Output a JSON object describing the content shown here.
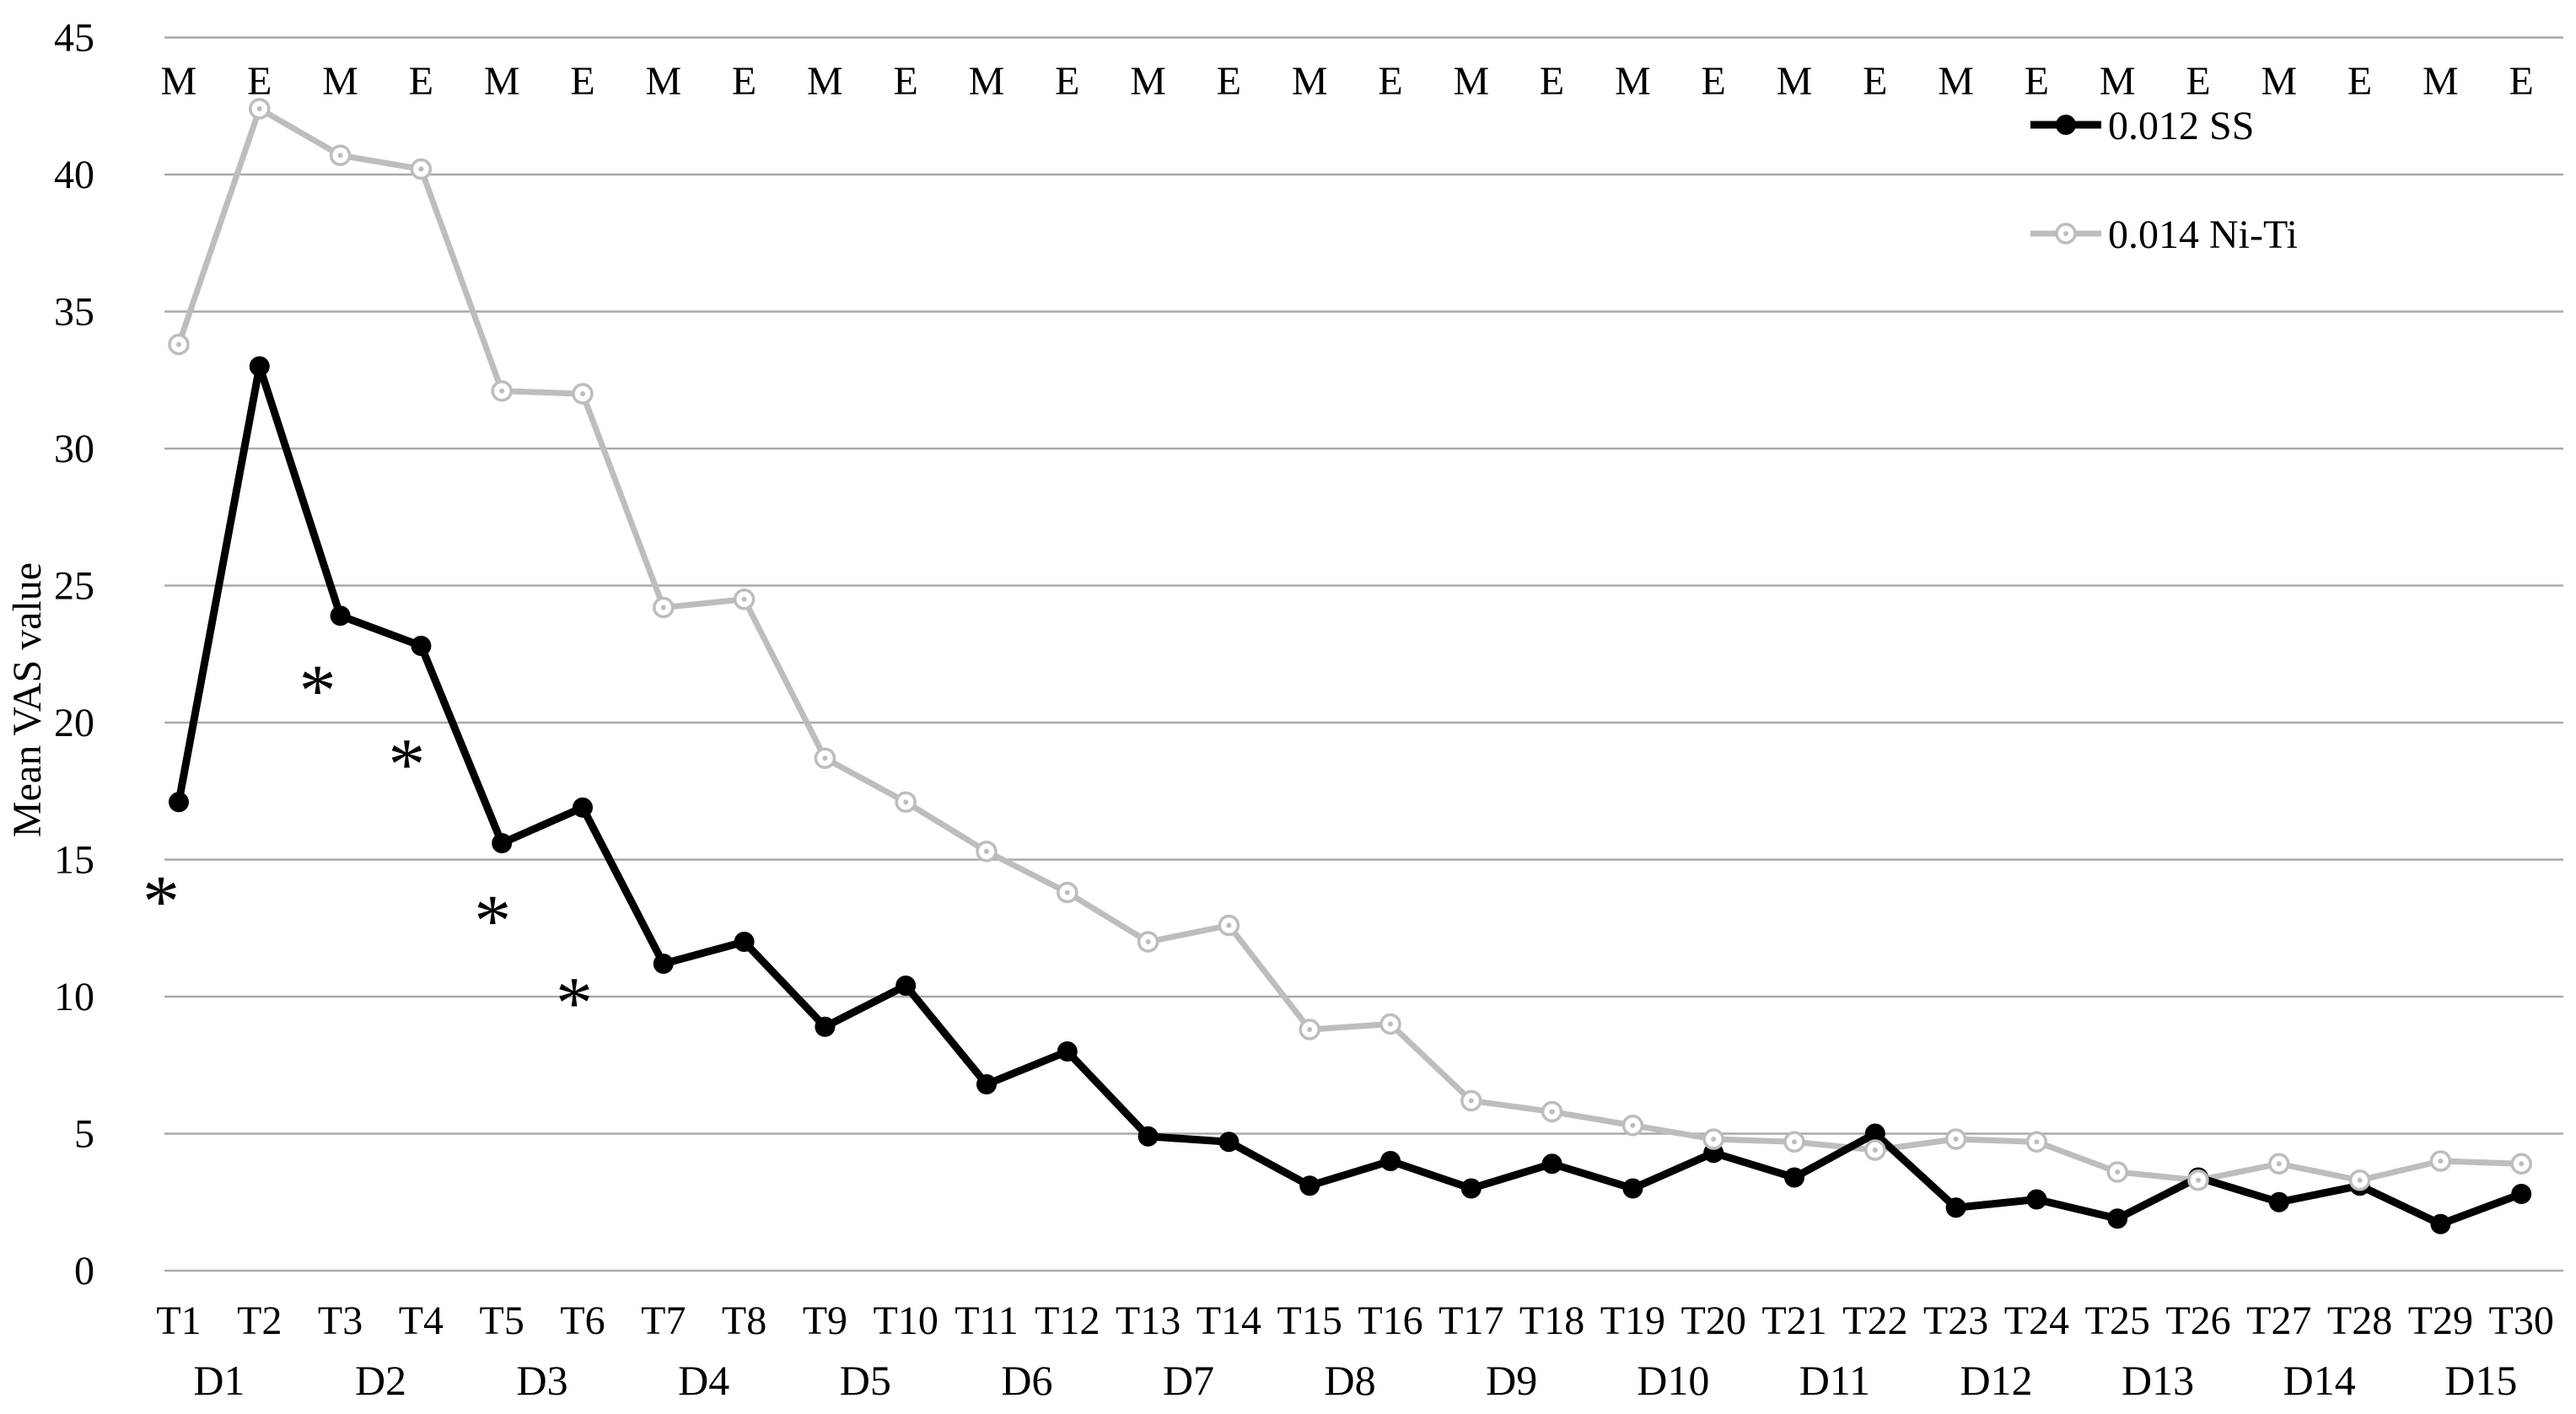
{
  "chart_data": {
    "type": "line",
    "title": "",
    "ylabel": "Mean VAS value",
    "xlabel": "",
    "ylim": [
      0,
      45
    ],
    "ytick_step": 5,
    "grid": true,
    "legend_position": "top-right",
    "categories": [
      "T1",
      "T2",
      "T3",
      "T4",
      "T5",
      "T6",
      "T7",
      "T8",
      "T9",
      "T10",
      "T11",
      "T12",
      "T13",
      "T14",
      "T15",
      "T16",
      "T17",
      "T18",
      "T19",
      "T20",
      "T21",
      "T22",
      "T23",
      "T24",
      "T25",
      "T26",
      "T27",
      "T28",
      "T29",
      "T30"
    ],
    "session_labels": [
      "M",
      "E",
      "M",
      "E",
      "M",
      "E",
      "M",
      "E",
      "M",
      "E",
      "M",
      "E",
      "M",
      "E",
      "M",
      "E",
      "M",
      "E",
      "M",
      "E",
      "M",
      "E",
      "M",
      "E",
      "M",
      "E",
      "M",
      "E",
      "M",
      "E"
    ],
    "day_labels": [
      "D1",
      "D2",
      "D3",
      "D4",
      "D5",
      "D6",
      "D7",
      "D8",
      "D9",
      "D10",
      "D11",
      "D12",
      "D13",
      "D14",
      "D15"
    ],
    "series": [
      {
        "name": "0.012 SS",
        "color": "#000000",
        "marker": "filled-circle",
        "values": [
          17.1,
          33.0,
          23.9,
          22.8,
          15.6,
          16.9,
          11.2,
          12.0,
          8.9,
          10.4,
          6.8,
          8.0,
          4.9,
          4.7,
          3.1,
          4.0,
          3.0,
          3.9,
          3.0,
          4.3,
          3.4,
          5.0,
          2.3,
          2.6,
          1.9,
          3.4,
          2.5,
          3.1,
          1.7,
          2.8
        ]
      },
      {
        "name": "0.014 Ni-Ti",
        "color": "#bdbdbd",
        "marker": "open-circle",
        "values": [
          33.8,
          42.4,
          40.7,
          40.2,
          32.1,
          32.0,
          24.2,
          24.5,
          18.7,
          17.1,
          15.3,
          13.8,
          12.0,
          12.6,
          8.8,
          9.0,
          6.2,
          5.8,
          5.3,
          4.8,
          4.7,
          4.4,
          4.8,
          4.7,
          3.6,
          3.3,
          3.9,
          3.3,
          4.0,
          3.9
        ]
      }
    ],
    "annotations": {
      "symbol": "*",
      "points": [
        {
          "t": 1,
          "value": 13.8,
          "dx": -21
        },
        {
          "t": 3,
          "value": 21.5,
          "dx": -27
        },
        {
          "t": 4,
          "value": 18.8,
          "dx": -17
        },
        {
          "t": 5,
          "value": 13.1,
          "dx": -11
        },
        {
          "t": 6,
          "value": 10.1,
          "dx": -10
        }
      ]
    },
    "colors": {
      "gridline": "#a9a9a9",
      "text": "#000000"
    }
  }
}
